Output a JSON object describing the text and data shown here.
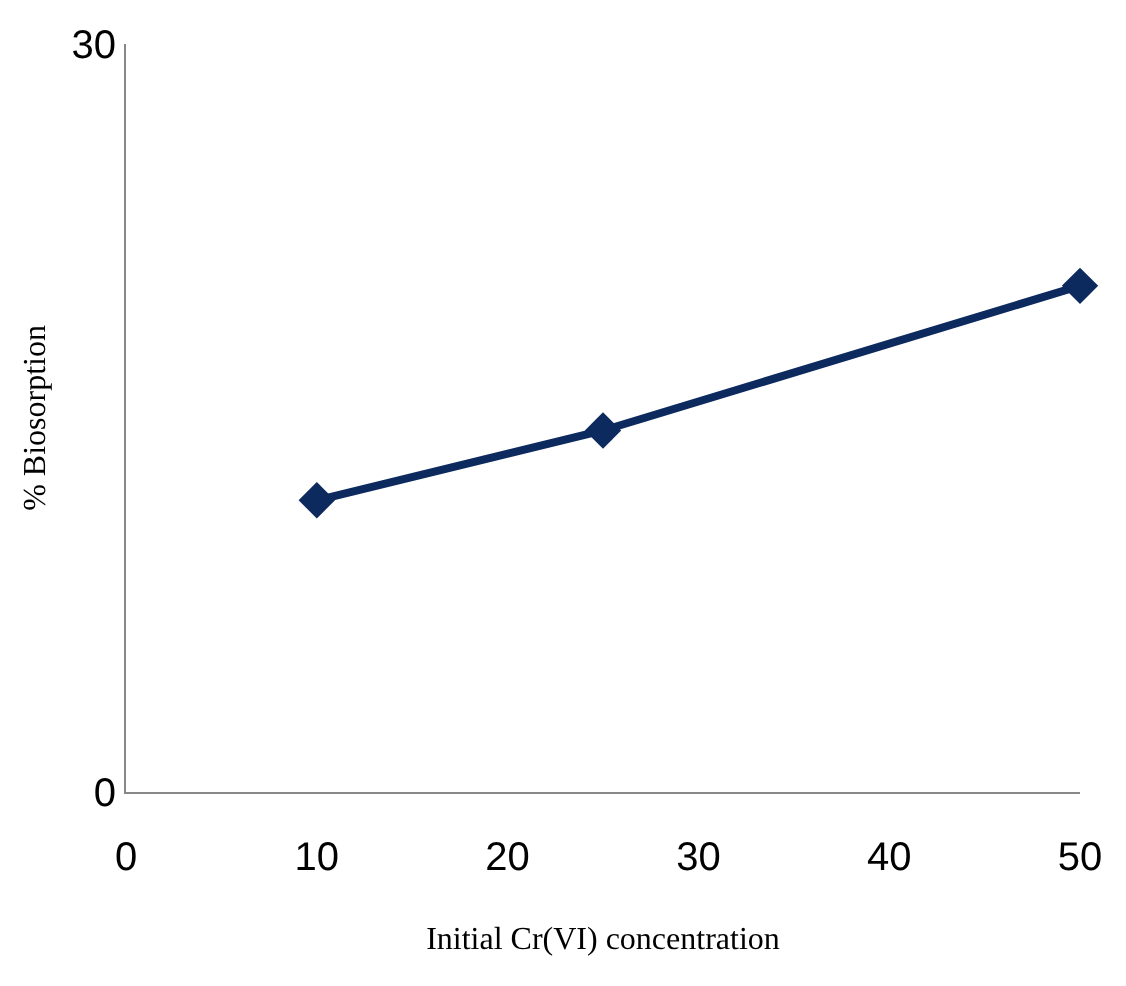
{
  "chart_data": {
    "type": "line",
    "xlabel": "Initial Cr(VI) concentration",
    "ylabel": "% Biosorption",
    "x": [
      10,
      25,
      50
    ],
    "series": [
      {
        "color": "#0d2a5e",
        "values": [
          11.7,
          14.5,
          20.3
        ]
      }
    ],
    "xlim": [
      0,
      50
    ],
    "xticks": [
      0,
      10,
      20,
      30,
      40,
      50
    ],
    "ylim": [
      0,
      30
    ],
    "yticks": [
      0,
      30
    ],
    "marker": "diamond",
    "line_style": "solid",
    "legend": false
  }
}
